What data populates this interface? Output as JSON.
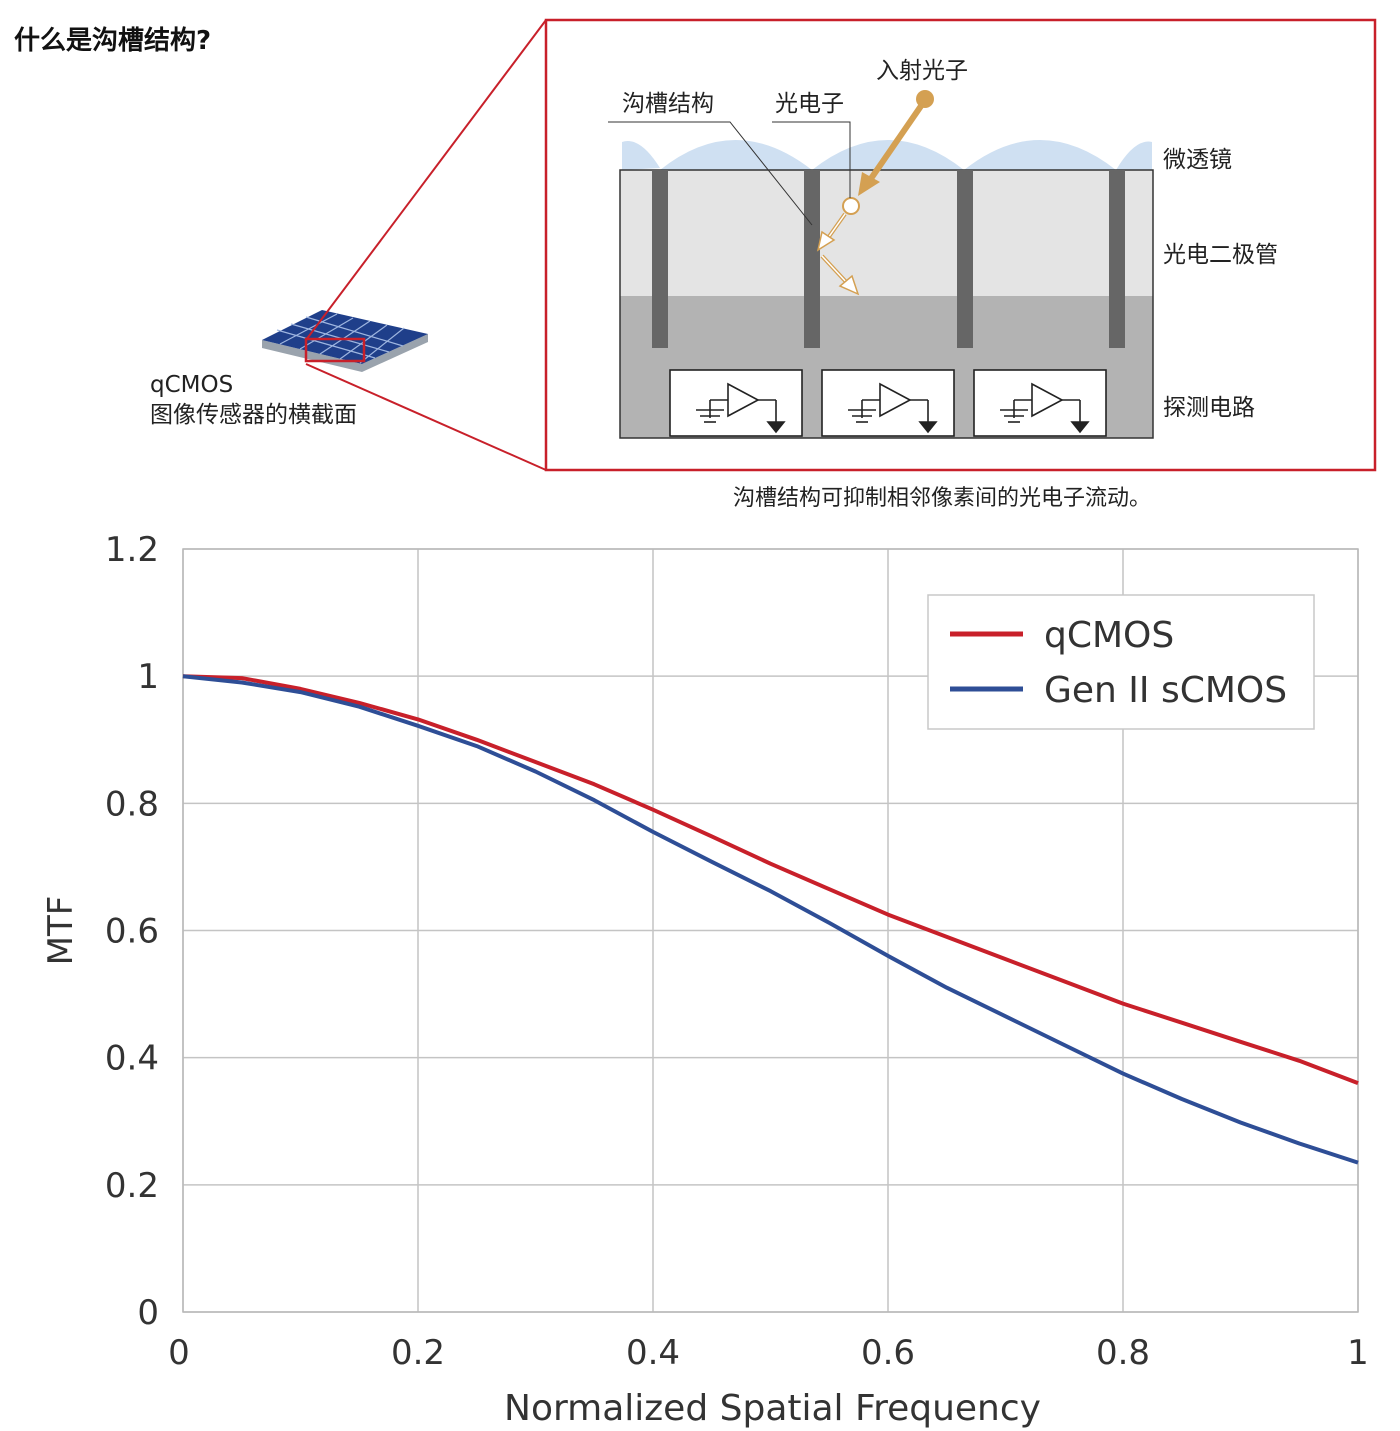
{
  "header": {
    "title": "什么是沟槽结构?"
  },
  "sensor": {
    "label_line1": "qCMOS",
    "label_line2": "图像传感器的横截面"
  },
  "diagram": {
    "labels": {
      "trench": "沟槽结构",
      "photoelectron": "光电子",
      "incident_photon": "入射光子",
      "microlens": "微透镜",
      "photodiode": "光电二极管",
      "circuit": "探测电路"
    },
    "caption": "沟槽结构可抑制相邻像素间的光电子流动。"
  },
  "colors": {
    "frame_red": "#c8202a",
    "qcmos": "#c8202a",
    "scmos": "#2e4e96",
    "photon": "#d4a052",
    "microlens": "#cfe0f2",
    "grid": "#c4c4c4"
  },
  "chart_data": {
    "type": "line",
    "title": "",
    "xlabel": "Normalized Spatial Frequency",
    "ylabel": "MTF",
    "xlim": [
      0,
      1
    ],
    "ylim": [
      0,
      1.2
    ],
    "xticks": [
      "0",
      "0.2",
      "0.4",
      "0.6",
      "0.8",
      "1"
    ],
    "yticks": [
      "0",
      "0.2",
      "0.4",
      "0.6",
      "0.8",
      "1",
      "1.2"
    ],
    "grid": true,
    "legend_position": "top-right",
    "series": [
      {
        "name": "qCMOS",
        "color": "#c8202a",
        "x": [
          0,
          0.05,
          0.1,
          0.15,
          0.2,
          0.25,
          0.3,
          0.35,
          0.4,
          0.45,
          0.5,
          0.55,
          0.6,
          0.65,
          0.7,
          0.75,
          0.8,
          0.85,
          0.9,
          0.95,
          1.0
        ],
        "y": [
          1.0,
          0.997,
          0.98,
          0.958,
          0.932,
          0.9,
          0.865,
          0.83,
          0.79,
          0.748,
          0.705,
          0.665,
          0.625,
          0.59,
          0.555,
          0.52,
          0.485,
          0.455,
          0.425,
          0.395,
          0.36
        ]
      },
      {
        "name": "Gen II sCMOS",
        "color": "#2e4e96",
        "x": [
          0,
          0.05,
          0.1,
          0.15,
          0.2,
          0.25,
          0.3,
          0.35,
          0.4,
          0.45,
          0.5,
          0.55,
          0.6,
          0.65,
          0.7,
          0.75,
          0.8,
          0.85,
          0.9,
          0.95,
          1.0
        ],
        "y": [
          1.0,
          0.99,
          0.975,
          0.952,
          0.922,
          0.89,
          0.85,
          0.805,
          0.755,
          0.708,
          0.662,
          0.612,
          0.56,
          0.51,
          0.465,
          0.42,
          0.375,
          0.335,
          0.298,
          0.265,
          0.235
        ]
      }
    ]
  }
}
